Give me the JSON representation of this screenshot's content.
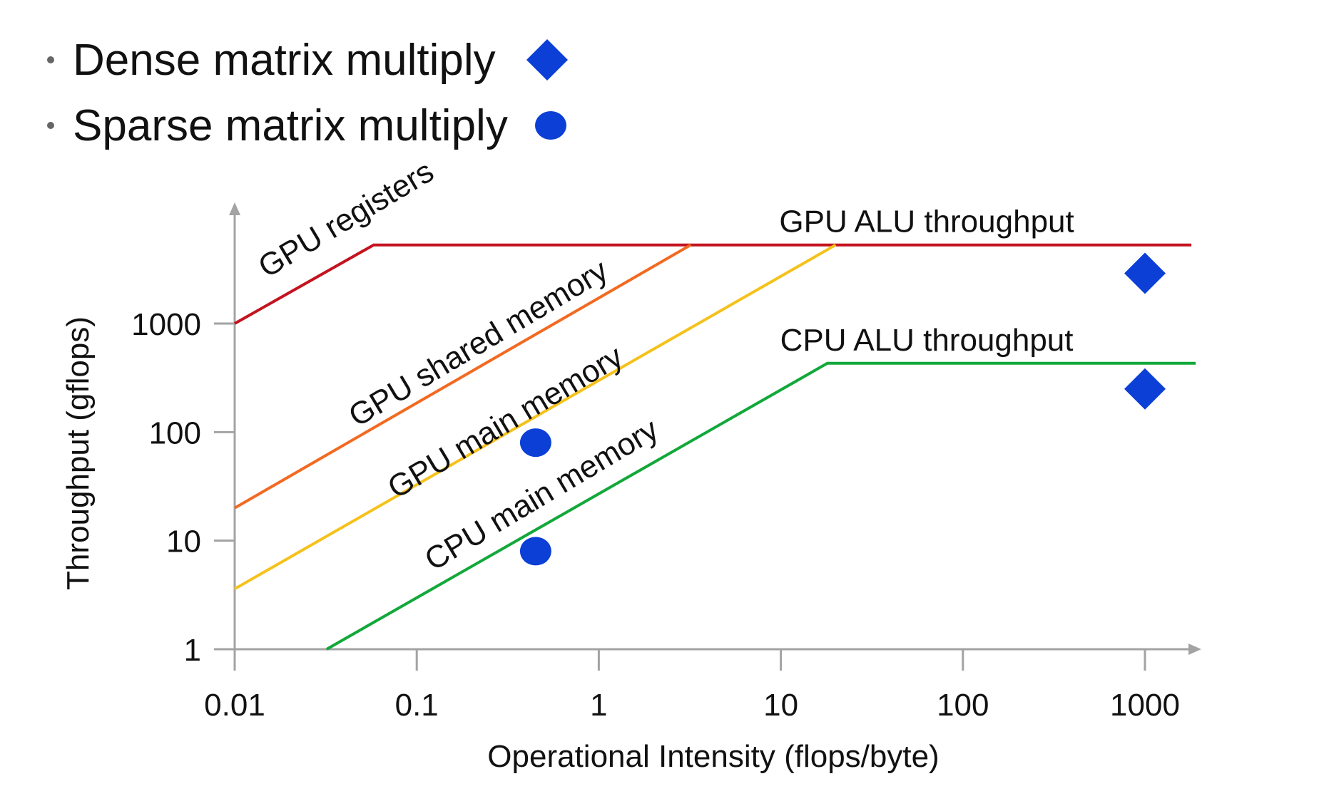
{
  "legend": {
    "items": [
      {
        "label": "Dense matrix multiply",
        "marker": "diamond"
      },
      {
        "label": "Sparse matrix multiply",
        "marker": "circle"
      }
    ]
  },
  "colors": {
    "marker": "#0b3fd6",
    "axis": "#a3a3a3",
    "text": "#111111",
    "gpu_registers": "#c4121f",
    "gpu_shared": "#f26a21",
    "gpu_main": "#f5c21c",
    "cpu_main": "#12a83a"
  },
  "chart_data": {
    "type": "line",
    "title": "",
    "xlabel": "Operational Intensity (flops/byte)",
    "ylabel": "Throughput (gflops)",
    "xscale": "log",
    "yscale": "log",
    "xlim": [
      0.01,
      2000
    ],
    "ylim": [
      1,
      10000
    ],
    "grid": false,
    "xticks": [
      0.01,
      0.1,
      1,
      10,
      100,
      1000
    ],
    "xtick_labels": [
      "0.01",
      "0.1",
      "1",
      "10",
      "100",
      "1000"
    ],
    "yticks": [
      1,
      10,
      100,
      1000
    ],
    "ytick_labels": [
      "1",
      "10",
      "100",
      "1000"
    ],
    "series": [
      {
        "name": "GPU registers",
        "color_key": "gpu_registers",
        "points": [
          [
            0.01,
            1000
          ],
          [
            0.058,
            5300
          ],
          [
            1800,
            5300
          ]
        ]
      },
      {
        "name": "GPU shared memory",
        "color_key": "gpu_shared",
        "points": [
          [
            0.01,
            20
          ],
          [
            3.2,
            5300
          ]
        ]
      },
      {
        "name": "GPU main memory",
        "color_key": "gpu_main",
        "points": [
          [
            0.01,
            3.6
          ],
          [
            20,
            5300
          ]
        ]
      },
      {
        "name": "CPU main memory",
        "color_key": "cpu_main",
        "points": [
          [
            0.032,
            1
          ],
          [
            18,
            430
          ],
          [
            1900,
            430
          ]
        ]
      }
    ],
    "ceiling_labels": [
      {
        "text": "GPU ALU throughput",
        "x": 80,
        "y": 5300
      },
      {
        "text": "CPU ALU throughput",
        "x": 80,
        "y": 430
      }
    ],
    "slope_labels": [
      {
        "text": "GPU registers",
        "x": 0.015,
        "y": 2600
      },
      {
        "text": "GPU shared memory",
        "x": 0.047,
        "y": 110
      },
      {
        "text": "GPU main memory",
        "x": 0.077,
        "y": 24
      },
      {
        "text": "CPU main memory",
        "x": 0.123,
        "y": 5.2
      }
    ],
    "points": [
      {
        "series": "Dense matrix multiply",
        "marker": "diamond",
        "x": 1000,
        "y": 2900
      },
      {
        "series": "Dense matrix multiply",
        "marker": "diamond",
        "x": 1000,
        "y": 250
      },
      {
        "series": "Sparse matrix multiply",
        "marker": "circle",
        "x": 0.45,
        "y": 80
      },
      {
        "series": "Sparse matrix multiply",
        "marker": "circle",
        "x": 0.45,
        "y": 8
      }
    ]
  }
}
